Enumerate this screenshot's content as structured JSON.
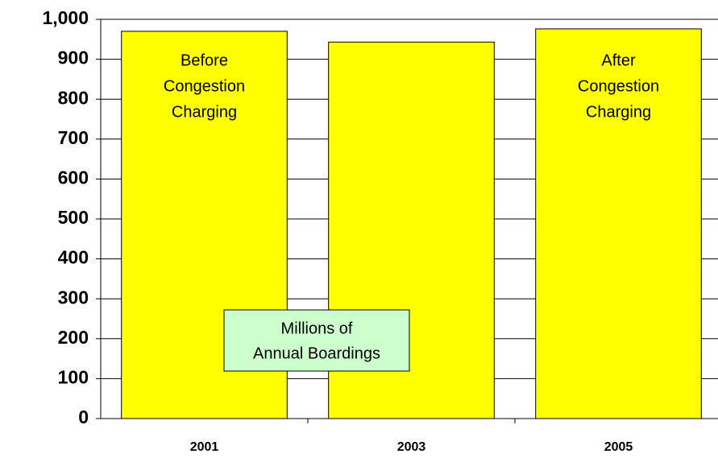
{
  "chart_data": {
    "type": "bar",
    "categories": [
      "2001",
      "2003",
      "2005"
    ],
    "values": [
      970,
      943,
      976
    ],
    "color": "#ffff00",
    "ylim": [
      0,
      1000
    ],
    "yticks": [
      0,
      100,
      200,
      300,
      400,
      500,
      600,
      700,
      800,
      900,
      {
        "value": 1000,
        "label": "1,000"
      }
    ],
    "grid": true,
    "annotations": [
      {
        "lines": [
          "Before",
          "Congestion",
          "Charging"
        ]
      },
      {
        "lines": [
          "After",
          "Congestion",
          "Charging"
        ]
      },
      {
        "lines": [
          "Millions of",
          "Annual Boardings"
        ]
      }
    ]
  }
}
